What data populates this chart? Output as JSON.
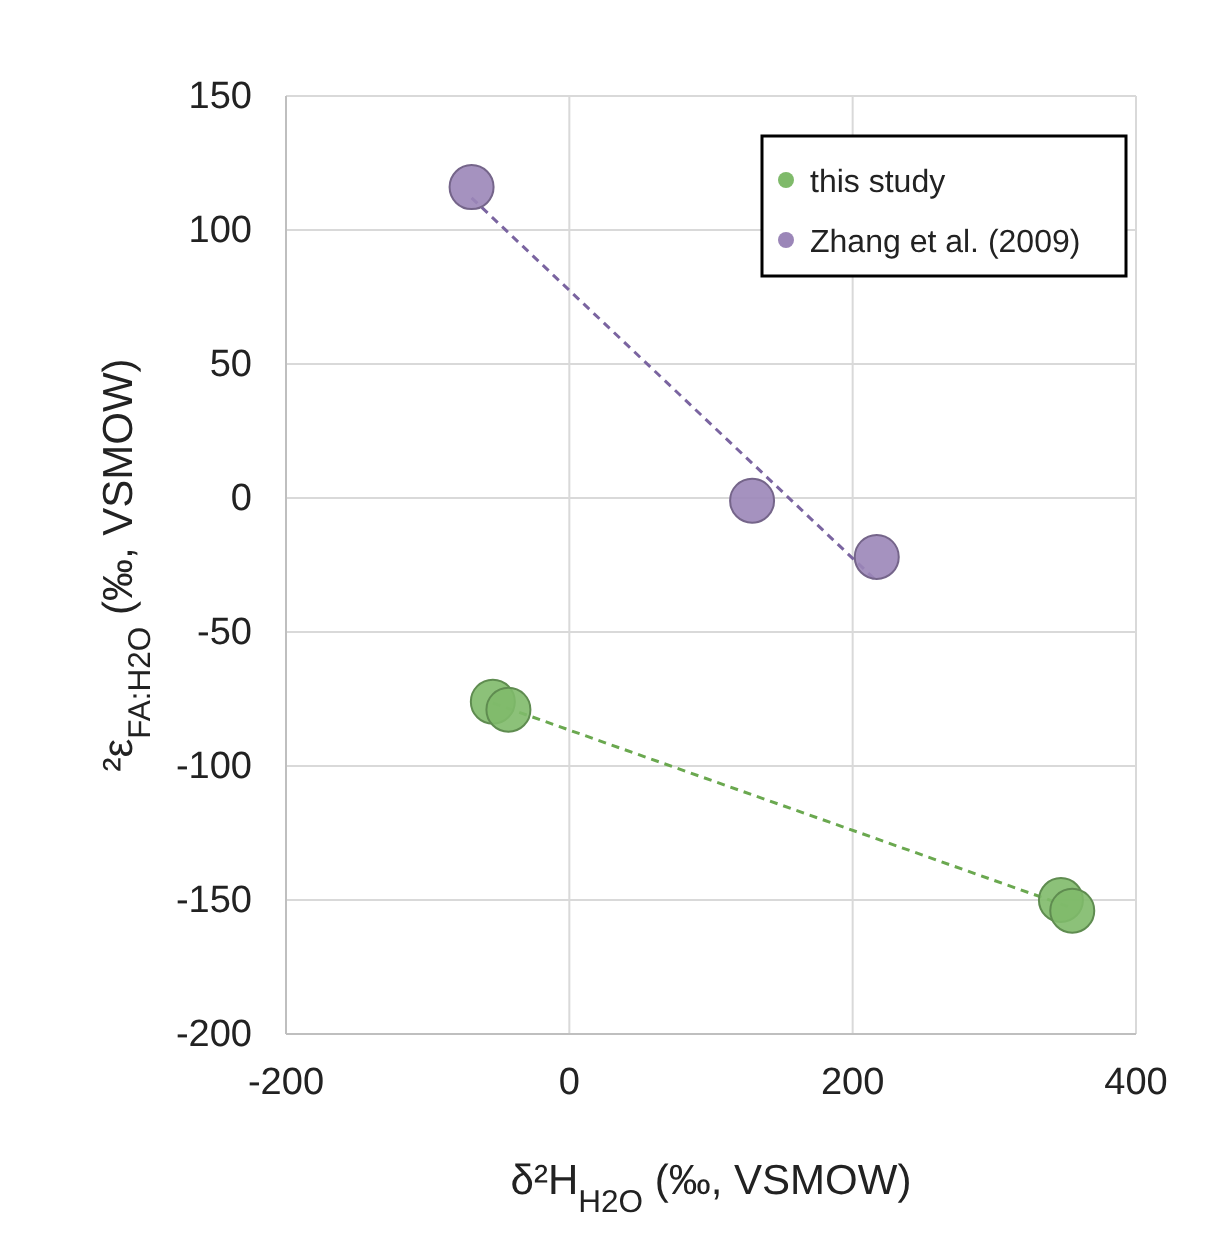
{
  "chart_data": {
    "type": "scatter",
    "xlabel": "δ²H$_{H2O}$ (‰, VSMOW)",
    "ylabel": "²ε$_{FA:H2O}$ (‰, VSMOW)",
    "xlim": [
      -200,
      400
    ],
    "xticks": [
      -200,
      0,
      200,
      400
    ],
    "ylim": [
      -200,
      150
    ],
    "yticks": [
      -200,
      -150,
      -100,
      -50,
      0,
      50,
      100,
      150
    ],
    "grid": true,
    "legend": "top right",
    "marker": "circle",
    "series": [
      {
        "name": "this study",
        "color": "#7fba6a",
        "x": [
          -54,
          -43,
          347,
          355
        ],
        "values": [
          -76,
          -79,
          -150,
          -154
        ]
      },
      {
        "name": "Zhang et al. (2009)",
        "color": "#9b86b8",
        "x": [
          -69,
          129,
          217
        ],
        "values": [
          116,
          -1,
          -22
        ]
      },
      {
        "type": "line",
        "color": "#6aa84f",
        "line_style": "dashed",
        "marker": "none",
        "x": [
          -54,
          355
        ],
        "values": [
          -76.5,
          -153
        ]
      },
      {
        "type": "line",
        "color": "#7a64a0",
        "line_style": "dashed",
        "marker": "none",
        "x": [
          -69,
          217
        ],
        "values": [
          112,
          -31
        ]
      }
    ]
  }
}
